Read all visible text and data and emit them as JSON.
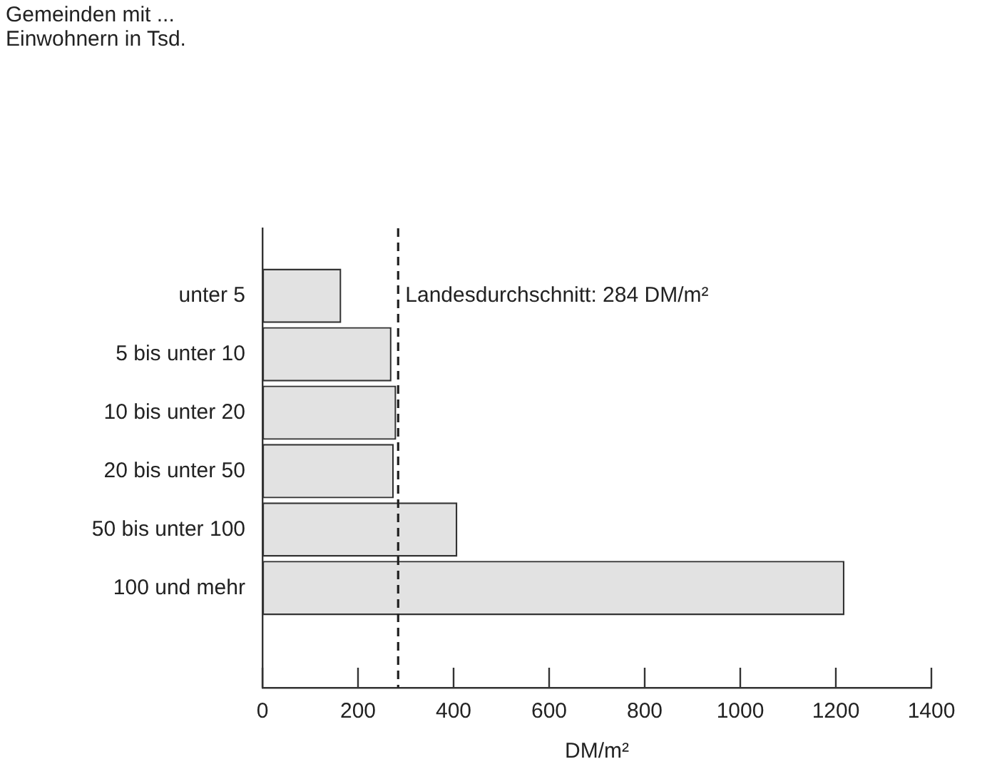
{
  "chart_data": {
    "type": "bar",
    "orientation": "horizontal",
    "annotations": [
      "Gemeinden mit ...\nEinwohnern in Tsd."
    ],
    "xlabel": "DM/m²",
    "categories": [
      "unter 5",
      "5 bis unter 10",
      "10 bis unter 20",
      "20 bis unter 50",
      "50 bis unter 100",
      "100 und mehr"
    ],
    "values": [
      165,
      270,
      280,
      275,
      408,
      1218
    ],
    "color": "#e2e2e2",
    "xlim": [
      0,
      1400
    ],
    "xticks": [
      0,
      200,
      400,
      600,
      800,
      1000,
      1200,
      1400
    ],
    "ref_lines": [
      {
        "axis": "x",
        "value": 284,
        "label": "Landesdurchschnitt: 284 DM/m²",
        "line_style": "dashed",
        "color": "#222222"
      }
    ],
    "grid": false,
    "legend": false
  }
}
